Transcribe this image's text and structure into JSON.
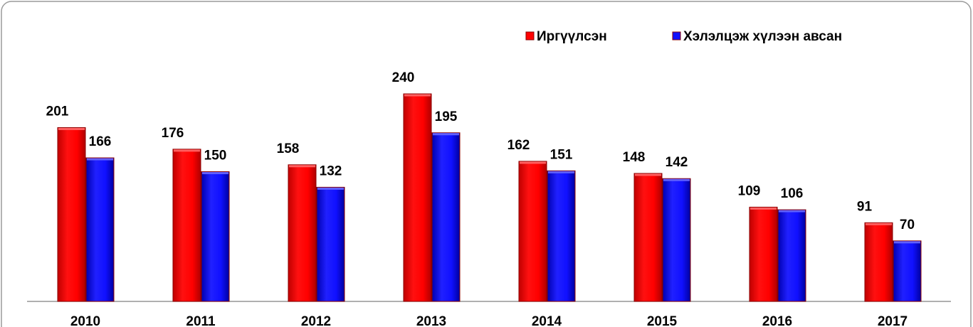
{
  "chart_data": {
    "type": "bar",
    "categories": [
      "2010",
      "2011",
      "2012",
      "2013",
      "2014",
      "2015",
      "2016",
      "2017"
    ],
    "series": [
      {
        "name": "Иргүүлсэн",
        "color": "#ff0000",
        "values": [
          201,
          176,
          158,
          240,
          162,
          148,
          109,
          91
        ]
      },
      {
        "name": "Хэлэлцэж хүлээн авсан",
        "color": "#1010ff",
        "values": [
          166,
          150,
          132,
          195,
          151,
          142,
          106,
          70
        ]
      }
    ],
    "legend": "top-right"
  }
}
